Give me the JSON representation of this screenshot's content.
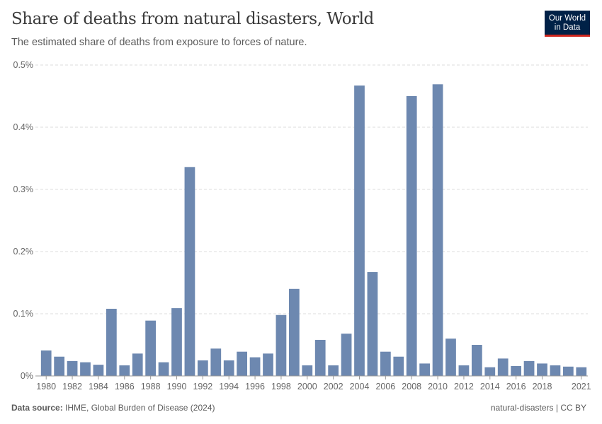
{
  "header": {
    "title": "Share of deaths from natural disasters, World",
    "subtitle": "The estimated share of deaths from exposure to forces of nature.",
    "logo": "Our World in Data"
  },
  "footer": {
    "source_label": "Data source:",
    "source": "IHME, Global Burden of Disease (2024)",
    "slug": "natural-disasters | CC BY"
  },
  "chart_data": {
    "type": "bar",
    "title": "Share of deaths from natural disasters, World",
    "ylabel": "",
    "xlabel": "",
    "ylim": [
      0,
      0.5
    ],
    "yticks": [
      "0%",
      "0.1%",
      "0.2%",
      "0.3%",
      "0.4%",
      "0.5%"
    ],
    "xtick_labels": [
      "1980",
      "1982",
      "1984",
      "1986",
      "1988",
      "1990",
      "1992",
      "1994",
      "1996",
      "1998",
      "2000",
      "2002",
      "2004",
      "2006",
      "2008",
      "2010",
      "2012",
      "2014",
      "2016",
      "2018",
      "2021"
    ],
    "grid": true,
    "color": "#6d88b0",
    "categories": [
      1980,
      1981,
      1982,
      1983,
      1984,
      1985,
      1986,
      1987,
      1988,
      1989,
      1990,
      1991,
      1992,
      1993,
      1994,
      1995,
      1996,
      1997,
      1998,
      1999,
      2000,
      2001,
      2002,
      2003,
      2004,
      2005,
      2006,
      2007,
      2008,
      2009,
      2010,
      2011,
      2012,
      2013,
      2014,
      2015,
      2016,
      2017,
      2018,
      2019,
      2020,
      2021
    ],
    "values": [
      0.041,
      0.031,
      0.024,
      0.022,
      0.018,
      0.108,
      0.017,
      0.036,
      0.089,
      0.022,
      0.109,
      0.336,
      0.025,
      0.044,
      0.025,
      0.039,
      0.03,
      0.036,
      0.098,
      0.14,
      0.017,
      0.058,
      0.017,
      0.068,
      0.467,
      0.167,
      0.039,
      0.031,
      0.45,
      0.02,
      0.469,
      0.06,
      0.017,
      0.05,
      0.014,
      0.028,
      0.016,
      0.024,
      0.02,
      0.017,
      0.015,
      0.014
    ]
  }
}
